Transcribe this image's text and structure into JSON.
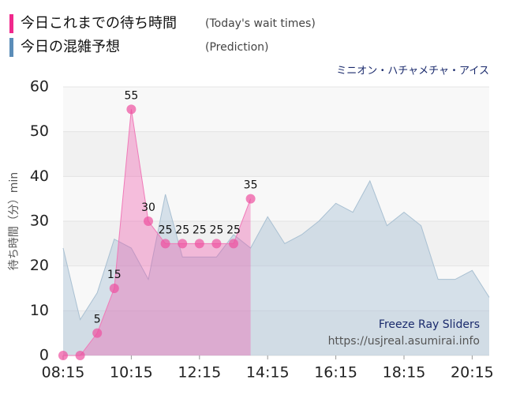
{
  "chart_data": {
    "type": "line",
    "subtitle": "ミニオン・ハチャメチャ・アイス",
    "ylabel": "待ち時間（分）min",
    "annotations": [
      "Freeze Ray Sliders",
      "https://usjreal.asumirai.info"
    ],
    "xlim": [
      495,
      1245
    ],
    "xticks": [
      {
        "value": 495,
        "label": "08:15"
      },
      {
        "value": 615,
        "label": "10:15"
      },
      {
        "value": 735,
        "label": "12:15"
      },
      {
        "value": 855,
        "label": "14:15"
      },
      {
        "value": 975,
        "label": "16:15"
      },
      {
        "value": 1095,
        "label": "18:15"
      },
      {
        "value": 1215,
        "label": "20:15"
      }
    ],
    "ylim": [
      0,
      60
    ],
    "yticks": [
      0,
      10,
      20,
      30,
      40,
      50,
      60
    ],
    "grid": true,
    "series": [
      {
        "name": "今日の混雑予想",
        "description": "(Prediction)",
        "color": "#5b8db8",
        "type": "area",
        "x": [
          495,
          525,
          555,
          585,
          615,
          645,
          675,
          705,
          735,
          765,
          795,
          825,
          855,
          885,
          915,
          945,
          975,
          1005,
          1035,
          1065,
          1095,
          1125,
          1155,
          1185,
          1215,
          1245
        ],
        "values": [
          24,
          8,
          14,
          26,
          24,
          17,
          36,
          22,
          22,
          22,
          27,
          24,
          31,
          25,
          27,
          30,
          34,
          32,
          39,
          29,
          32,
          29,
          17,
          17,
          19,
          13
        ]
      },
      {
        "name": "今日これまでの待ち時間",
        "description": "(Today's wait times)",
        "color": "#f0288c",
        "type": "area",
        "markers": true,
        "x": [
          495,
          525,
          555,
          585,
          615,
          645,
          675,
          705,
          735,
          765,
          795,
          825
        ],
        "values": [
          0,
          0,
          5,
          15,
          55,
          30,
          25,
          25,
          25,
          25,
          25,
          35
        ]
      }
    ]
  }
}
